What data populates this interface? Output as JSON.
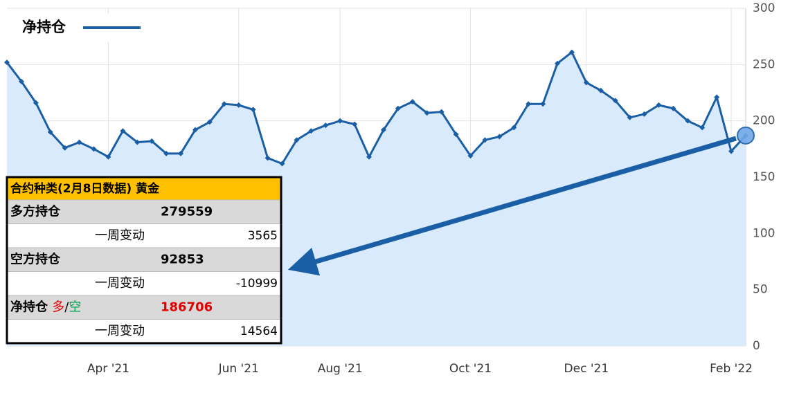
{
  "chart_data": {
    "type": "area",
    "categories": [
      null,
      null,
      null,
      null,
      null,
      null,
      null,
      "Apr '21",
      null,
      null,
      null,
      null,
      null,
      null,
      null,
      null,
      "Jun '21",
      null,
      null,
      null,
      null,
      null,
      null,
      "Aug '21",
      null,
      null,
      null,
      null,
      null,
      null,
      null,
      null,
      "Oct '21",
      null,
      null,
      null,
      null,
      null,
      null,
      null,
      "Dec '21",
      null,
      null,
      null,
      null,
      null,
      null,
      null,
      null,
      null,
      "Feb '22",
      null
    ],
    "series": [
      {
        "name": "净持仓",
        "color": "#1a5fa6",
        "values": [
          252,
          235,
          216,
          190,
          176,
          181,
          175,
          168,
          191,
          181,
          182,
          171,
          171,
          192,
          199,
          215,
          214,
          210,
          167,
          162,
          183,
          191,
          196,
          200,
          197,
          168,
          192,
          211,
          217,
          207,
          208,
          188,
          169,
          183,
          186,
          194,
          215,
          215,
          251,
          261,
          234,
          227,
          218,
          203,
          206,
          214,
          211,
          200,
          194,
          221,
          173,
          187
        ]
      }
    ],
    "ylim": [
      0,
      300
    ],
    "yticks": [
      0,
      50,
      100,
      150,
      200,
      250,
      300
    ],
    "grid": true,
    "legend": "top-left"
  },
  "table": {
    "header": "合约种类(2月8日数据) 黄金",
    "rows": [
      {
        "label": "多方持仓",
        "value": 279559
      },
      {
        "label": "一周变动",
        "value": 3565
      },
      {
        "label": "空方持仓",
        "value": 92853
      },
      {
        "label": "一周变动",
        "value": -10999
      },
      {
        "label_parts": [
          "净持仓 ",
          "多",
          "/",
          "空"
        ],
        "value": 186706
      },
      {
        "label": "一周变动",
        "value": 14564
      }
    ]
  }
}
